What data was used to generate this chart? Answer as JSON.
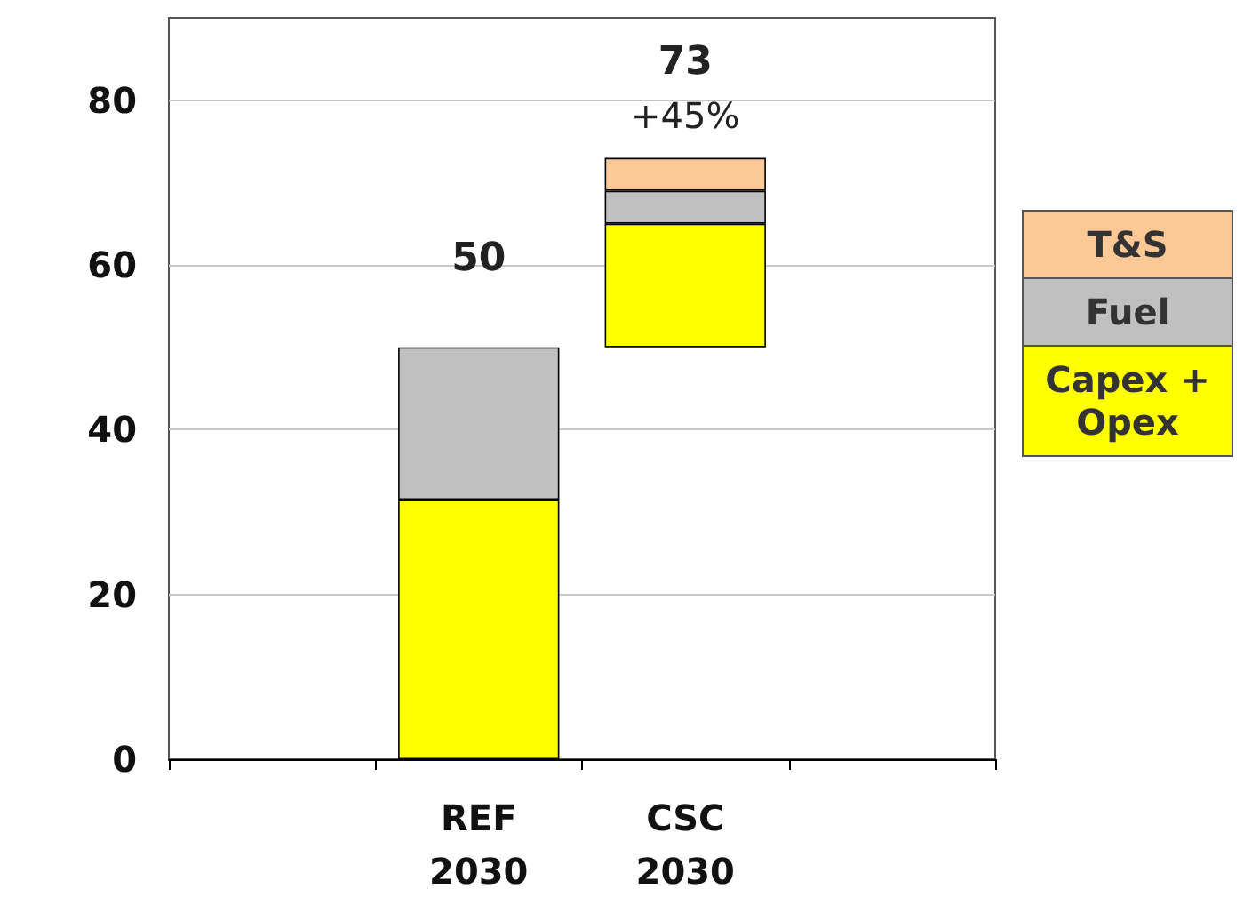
{
  "chart_data": {
    "type": "bar",
    "categories": [
      null,
      "REF\n2030",
      "CSC\n2030",
      null
    ],
    "series": [
      {
        "name": "Capex +\nOpex",
        "color": "#ffff00",
        "base": [
          null,
          0,
          50,
          null
        ],
        "values": [
          null,
          31.5,
          15,
          null
        ]
      },
      {
        "name": "Fuel",
        "color": "#c0c0c0",
        "base": [
          null,
          31.5,
          65,
          null
        ],
        "values": [
          null,
          18.5,
          4,
          null
        ]
      },
      {
        "name": "T&S",
        "color": "#fcc896",
        "base": [
          null,
          null,
          69,
          null
        ],
        "values": [
          null,
          null,
          4,
          null
        ]
      }
    ],
    "annotations": [
      {
        "text": "50",
        "x": "REF\n2030",
        "y": 50
      },
      {
        "text": "73",
        "x": "CSC\n2030",
        "y": 73
      },
      {
        "text": "+45%",
        "x": "CSC\n2030",
        "y": 73
      }
    ],
    "ylim": [
      0,
      90
    ],
    "yticks": [
      0,
      20,
      40,
      60,
      80
    ],
    "grid": "y",
    "legend": "right"
  }
}
